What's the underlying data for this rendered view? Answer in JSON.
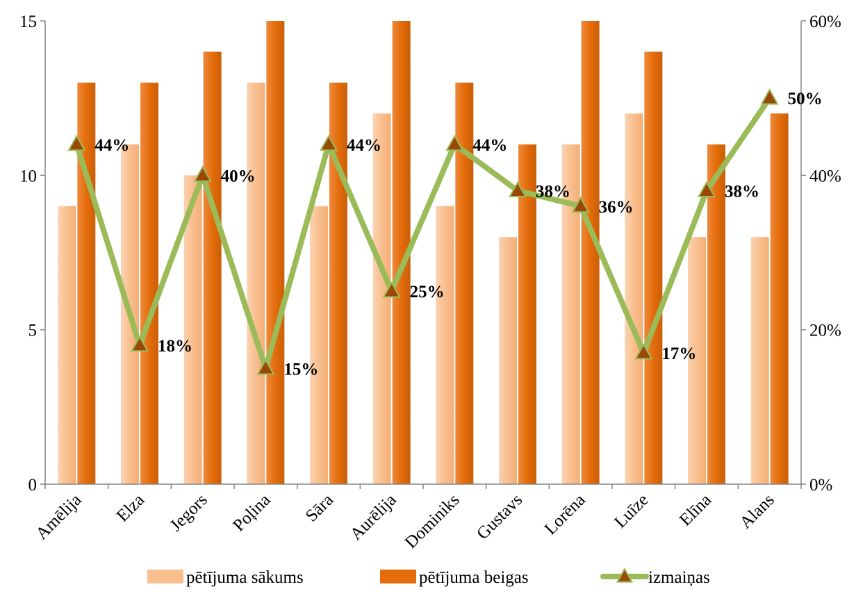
{
  "chart_data": {
    "type": "bar",
    "categories": [
      "Amēlija",
      "Elza",
      "Jegors",
      "Poļina",
      "Sāra",
      "Aurēlija",
      "Dominiks",
      "Gustavs",
      "Lorēna",
      "Luīze",
      "Elīna",
      "Alans"
    ],
    "series": [
      {
        "name": "pētījuma sākums",
        "type": "bar",
        "axis": "left",
        "color": "#F9BE8E",
        "values": [
          9,
          11,
          10,
          13,
          9,
          12,
          9,
          8,
          11,
          12,
          8,
          8
        ]
      },
      {
        "name": "pētījuma beigas",
        "type": "bar",
        "axis": "left",
        "color": "#E46C0A",
        "values": [
          13,
          13,
          14,
          15,
          13,
          15,
          13,
          11,
          15,
          14,
          11,
          12
        ]
      },
      {
        "name": "izmaiņas",
        "type": "line",
        "axis": "right",
        "color": "#9BBB59",
        "marker": "triangle",
        "marker_color": "#984807",
        "values": [
          44,
          18,
          40,
          15,
          44,
          25,
          44,
          38,
          36,
          17,
          38,
          50
        ],
        "labels": [
          "44%",
          "18%",
          "40%",
          "15%",
          "44%",
          "25%",
          "44%",
          "38%",
          "36%",
          "17%",
          "38%",
          "50%"
        ]
      }
    ],
    "y_left": {
      "min": 0,
      "max": 15,
      "ticks": [
        0,
        5,
        10,
        15
      ],
      "tick_labels": [
        "0",
        "5",
        "10",
        "15"
      ]
    },
    "y_right": {
      "min": 0,
      "max": 60,
      "ticks": [
        0,
        20,
        40,
        60
      ],
      "tick_labels": [
        "0%",
        "20%",
        "40%",
        "60%"
      ]
    },
    "title": "",
    "xlabel": "",
    "ylabel": "",
    "grid": false,
    "legend_position": "bottom"
  }
}
